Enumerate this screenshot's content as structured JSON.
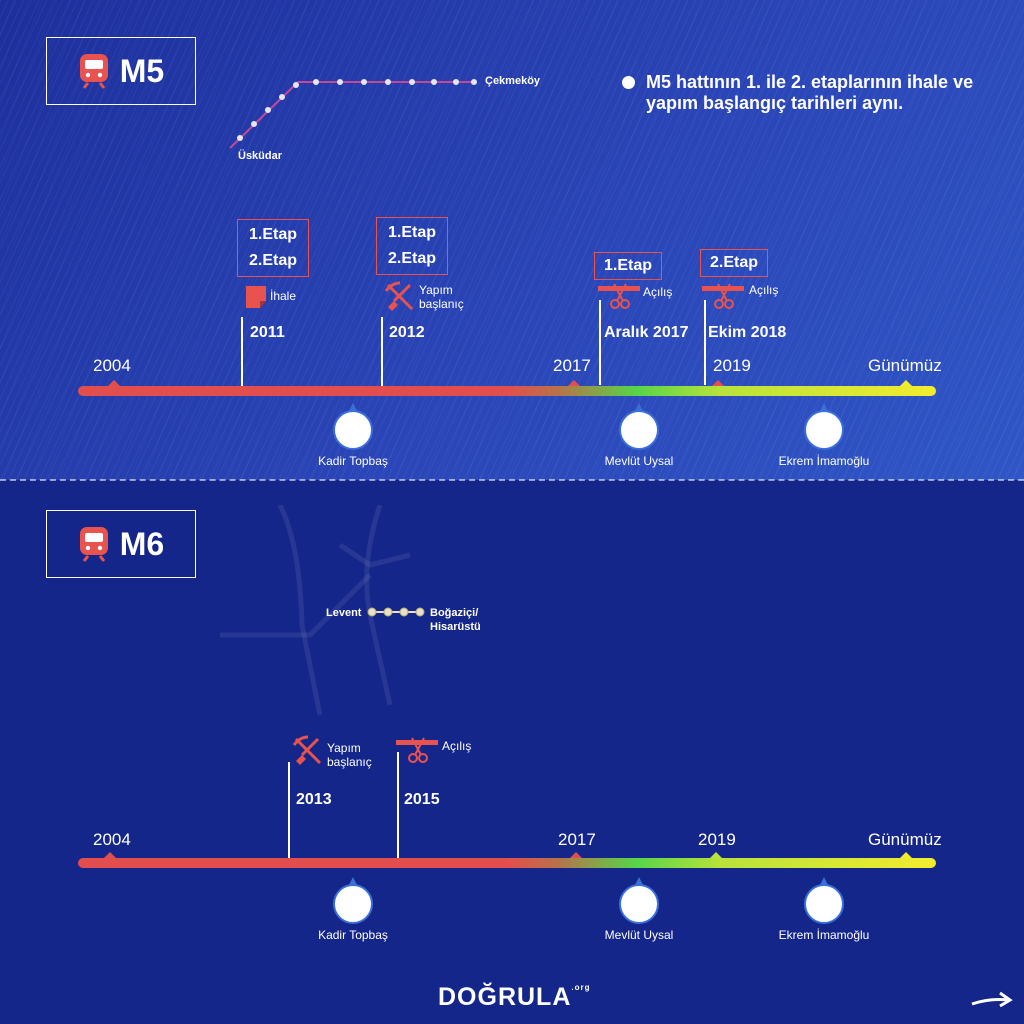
{
  "m5": {
    "line_name": "M5",
    "stations": {
      "start": "Üsküdar",
      "end": "Çekmeköy"
    },
    "note": "M5 hattının 1. ile 2. etaplarının ihale ve yapım başlangıç tarihleri aynı.",
    "timeline": {
      "start": "2004",
      "y2017": "2017",
      "y2019": "2019",
      "end": "Günümüz"
    },
    "events": [
      {
        "etap1": "1.Etap",
        "etap2": "2.Etap",
        "label": "İhale",
        "year": "2011"
      },
      {
        "etap1": "1.Etap",
        "etap2": "2.Etap",
        "label": "Yapım başlanıç",
        "year": "2012"
      },
      {
        "etap": "1.Etap",
        "label": "Açılış",
        "year": "Aralık 2017"
      },
      {
        "etap": "2.Etap",
        "label": "Açılış",
        "year": "Ekim 2018"
      }
    ],
    "people": [
      "Kadir Topbaş",
      "Mevlüt Uysal",
      "Ekrem İmamoğlu"
    ]
  },
  "m6": {
    "line_name": "M6",
    "stations": {
      "start": "Levent",
      "end_line1": "Boğaziçi/",
      "end_line2": "Hisarüstü"
    },
    "timeline": {
      "start": "2004",
      "y2017": "2017",
      "y2019": "2019",
      "end": "Günümüz"
    },
    "events": [
      {
        "label": "Yapım başlanıç",
        "year": "2013"
      },
      {
        "label": "Açılış",
        "year": "2015"
      }
    ],
    "people": [
      "Kadir Topbaş",
      "Mevlüt Uysal",
      "Ekrem İmamoğlu"
    ]
  },
  "footer": {
    "logo": "DOĞRULA",
    "logo_suffix": ".org"
  },
  "icons": {
    "metro": "metro-train-icon",
    "tender": "document-icon",
    "construction": "shovel-pickaxe-icon",
    "ribbon": "ribbon-cut-icon",
    "person": "portrait-icon",
    "next": "arrow-right-icon"
  },
  "colors": {
    "accent": "#e8524f",
    "bg_top": "#2a45b7",
    "bg_bottom": "#15268a"
  }
}
